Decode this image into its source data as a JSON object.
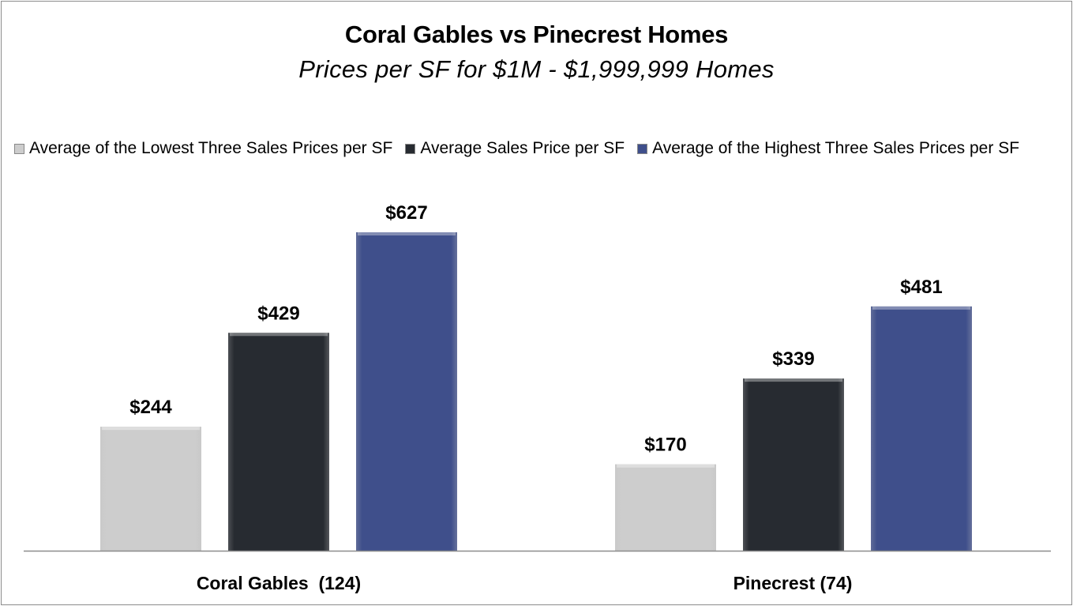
{
  "chart_data": {
    "type": "bar",
    "title": "Coral Gables vs Pinecrest Homes",
    "subtitle": "Prices per SF for $1M - $1,999,999 Homes",
    "categories": [
      "Coral Gables  (124)",
      "Pinecrest (74)"
    ],
    "series": [
      {
        "name": "Average of the Lowest Three Sales Prices per SF",
        "values": [
          244,
          170
        ],
        "labels": [
          "$244",
          "$170"
        ],
        "color": "#cdcdcd"
      },
      {
        "name": "Average Sales Price per SF",
        "values": [
          429,
          339
        ],
        "labels": [
          "$429",
          "$339"
        ],
        "color": "#272b31"
      },
      {
        "name": "Average of the Highest Three Sales Prices per SF",
        "values": [
          627,
          481
        ],
        "labels": [
          "$627",
          "$481"
        ],
        "color": "#3f4f8b"
      }
    ],
    "ylim": [
      0,
      700
    ],
    "legend_position": "top",
    "grid": false,
    "xlabel": "",
    "ylabel": ""
  }
}
